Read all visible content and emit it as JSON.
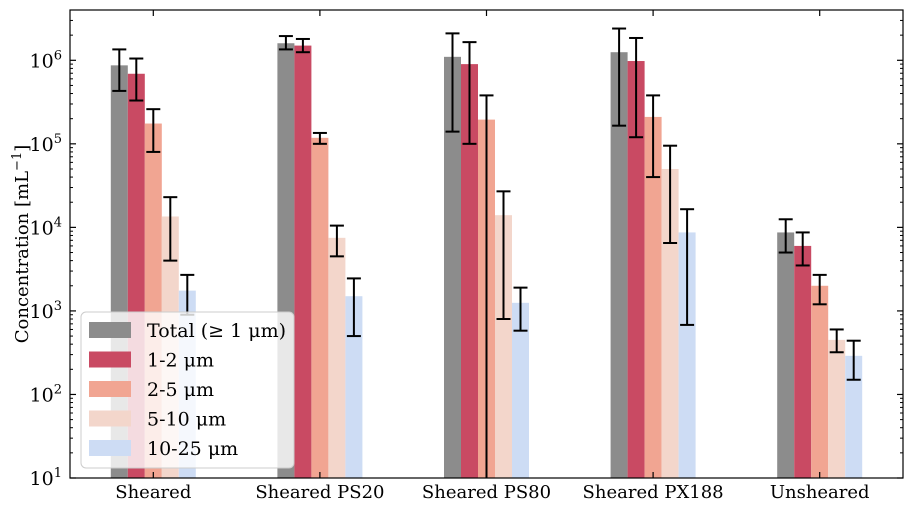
{
  "chart_data": {
    "type": "bar",
    "yscale": "log",
    "ylim": [
      10,
      4000000
    ],
    "ylabel": "Concentration [mL",
    "ylabel_exp": "−1",
    "ylabel_close": "]",
    "yticks": [
      {
        "value": 10,
        "base": "10",
        "exp": "1"
      },
      {
        "value": 100,
        "base": "10",
        "exp": "2"
      },
      {
        "value": 1000,
        "base": "10",
        "exp": "3"
      },
      {
        "value": 10000,
        "base": "10",
        "exp": "4"
      },
      {
        "value": 100000,
        "base": "10",
        "exp": "5"
      },
      {
        "value": 1000000,
        "base": "10",
        "exp": "6"
      }
    ],
    "categories": [
      "Sheared",
      "Sheared PS20",
      "Sheared PS80",
      "Sheared PX188",
      "Unsheared"
    ],
    "legend_position": "lower-left",
    "series": [
      {
        "name": "Total (≥ 1 μm)",
        "color": "#8c8c8c",
        "values": [
          870000,
          1600000,
          1100000,
          1250000,
          8700
        ],
        "err_low": [
          430000,
          1350000,
          140000,
          165000,
          5000
        ],
        "err_high": [
          1350000,
          1950000,
          2100000,
          2400000,
          12500
        ]
      },
      {
        "name": "1-2 μm",
        "color": "#c94a63",
        "values": [
          690000,
          1500000,
          900000,
          980000,
          6000
        ],
        "err_low": [
          330000,
          1250000,
          100000,
          120000,
          3500
        ],
        "err_high": [
          1050000,
          1800000,
          1650000,
          1850000,
          8700
        ]
      },
      {
        "name": "2-5 μm",
        "color": "#f1a592",
        "values": [
          175000,
          118000,
          195000,
          210000,
          2000
        ],
        "err_low": [
          80000,
          100000,
          10,
          40000,
          1200
        ],
        "err_high": [
          260000,
          135000,
          380000,
          380000,
          2700
        ]
      },
      {
        "name": "5-10 μm",
        "color": "#f3d6cb",
        "values": [
          13500,
          7500,
          14000,
          50000,
          450
        ],
        "err_low": [
          4000,
          4500,
          800,
          6500,
          320
        ],
        "err_high": [
          23000,
          10500,
          27000,
          95000,
          600
        ]
      },
      {
        "name": "10-25 μm",
        "color": "#cddcf4",
        "values": [
          1750,
          1500,
          1250,
          8700,
          290
        ],
        "err_low": [
          900,
          500,
          580,
          680,
          150
        ],
        "err_high": [
          2700,
          2450,
          1900,
          16500,
          440
        ]
      }
    ]
  }
}
